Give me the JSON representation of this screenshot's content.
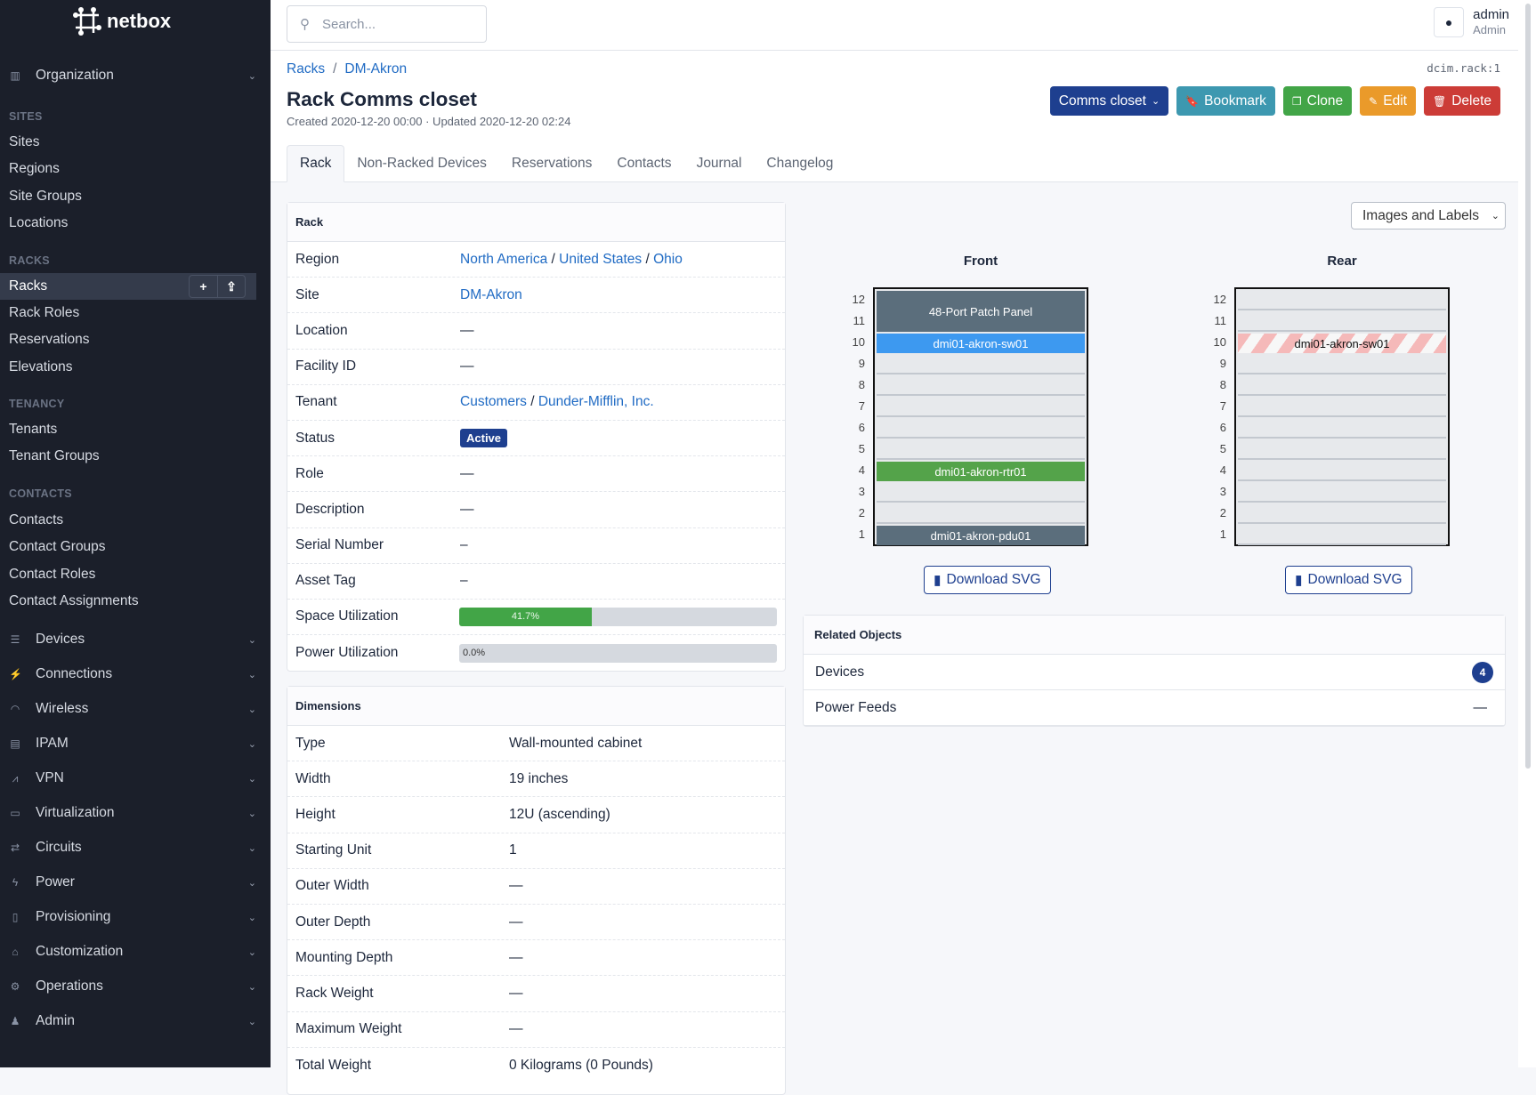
{
  "brand": {
    "name": "netbox"
  },
  "sidebar": {
    "items": [
      {
        "type": "group",
        "label": "Organization",
        "icon": "building-icon",
        "glyph": "▥"
      },
      {
        "type": "section",
        "label": "SITES"
      },
      {
        "type": "item",
        "label": "Sites"
      },
      {
        "type": "item",
        "label": "Regions"
      },
      {
        "type": "item",
        "label": "Site Groups"
      },
      {
        "type": "item",
        "label": "Locations"
      },
      {
        "type": "section",
        "label": "RACKS"
      },
      {
        "type": "item",
        "label": "Racks",
        "active": true
      },
      {
        "type": "item",
        "label": "Rack Roles"
      },
      {
        "type": "item",
        "label": "Reservations"
      },
      {
        "type": "item",
        "label": "Elevations"
      },
      {
        "type": "section",
        "label": "TENANCY"
      },
      {
        "type": "item",
        "label": "Tenants"
      },
      {
        "type": "item",
        "label": "Tenant Groups"
      },
      {
        "type": "section",
        "label": "CONTACTS"
      },
      {
        "type": "item",
        "label": "Contacts"
      },
      {
        "type": "item",
        "label": "Contact Groups"
      },
      {
        "type": "item",
        "label": "Contact Roles"
      },
      {
        "type": "item",
        "label": "Contact Assignments"
      },
      {
        "type": "group",
        "label": "Devices",
        "icon": "server-icon",
        "glyph": "☰"
      },
      {
        "type": "group",
        "label": "Connections",
        "icon": "plug-icon",
        "glyph": "⚡"
      },
      {
        "type": "group",
        "label": "Wireless",
        "icon": "wifi-icon",
        "glyph": "◠"
      },
      {
        "type": "group",
        "label": "IPAM",
        "icon": "ip-icon",
        "glyph": "▤"
      },
      {
        "type": "group",
        "label": "VPN",
        "icon": "vpn-icon",
        "glyph": "⩘"
      },
      {
        "type": "group",
        "label": "Virtualization",
        "icon": "monitor-icon",
        "glyph": "▭"
      },
      {
        "type": "group",
        "label": "Circuits",
        "icon": "circuit-icon",
        "glyph": "⇄"
      },
      {
        "type": "group",
        "label": "Power",
        "icon": "power-icon",
        "glyph": "ϟ"
      },
      {
        "type": "group",
        "label": "Provisioning",
        "icon": "file-icon",
        "glyph": "▯"
      },
      {
        "type": "group",
        "label": "Customization",
        "icon": "palette-icon",
        "glyph": "⌂"
      },
      {
        "type": "group",
        "label": "Operations",
        "icon": "cogs-icon",
        "glyph": "⚙"
      },
      {
        "type": "group",
        "label": "Admin",
        "icon": "users-icon",
        "glyph": "♟"
      }
    ],
    "add_symbol": "+",
    "import_symbol": "⇪"
  },
  "search": {
    "placeholder": "Search..."
  },
  "user": {
    "name": "admin",
    "role": "Admin"
  },
  "breadcrumb": [
    "Racks",
    "DM-Akron"
  ],
  "object_id": "dcim.rack:1",
  "page": {
    "title": "Rack Comms closet",
    "meta": "Created 2020-12-20 00:00 · Updated 2020-12-20 02:24"
  },
  "actions": [
    {
      "label": "Comms closet",
      "icon": "",
      "suffix": "⌄",
      "color": "#1e3f8f"
    },
    {
      "label": "Bookmark",
      "icon": "🔖",
      "color": "#3d98b0"
    },
    {
      "label": "Clone",
      "icon": "❐",
      "color": "#42a547"
    },
    {
      "label": "Edit",
      "icon": "✎",
      "color": "#ea9a2a"
    },
    {
      "label": "Delete",
      "icon": "🗑",
      "color": "#cc3c37"
    }
  ],
  "tabs": [
    "Rack",
    "Non-Racked Devices",
    "Reservations",
    "Contacts",
    "Journal",
    "Changelog"
  ],
  "rack_card": {
    "title": "Rack",
    "rows": [
      {
        "k": "Region",
        "links": [
          "North America",
          "United States",
          "Ohio"
        ]
      },
      {
        "k": "Site",
        "links": [
          "DM-Akron"
        ]
      },
      {
        "k": "Location",
        "v": "—"
      },
      {
        "k": "Facility ID",
        "v": "—"
      },
      {
        "k": "Tenant",
        "links": [
          "Customers",
          "Dunder-Mifflin, Inc."
        ]
      },
      {
        "k": "Status",
        "badge": "Active"
      },
      {
        "k": "Role",
        "v": "—"
      },
      {
        "k": "Description",
        "v": "—"
      },
      {
        "k": "Serial Number",
        "v": "–"
      },
      {
        "k": "Asset Tag",
        "v": "–"
      },
      {
        "k": "Space Utilization",
        "progress": 41.7,
        "label": "41.7%"
      },
      {
        "k": "Power Utilization",
        "progress": 0,
        "label": "0.0%"
      }
    ]
  },
  "dimensions_card": {
    "title": "Dimensions",
    "rows": [
      {
        "k": "Type",
        "v": "Wall-mounted cabinet"
      },
      {
        "k": "Width",
        "v": "19 inches"
      },
      {
        "k": "Height",
        "v": "12U (ascending)"
      },
      {
        "k": "Starting Unit",
        "v": "1"
      },
      {
        "k": "Outer Width",
        "v": "—"
      },
      {
        "k": "Outer Depth",
        "v": "—"
      },
      {
        "k": "Mounting Depth",
        "v": "—"
      },
      {
        "k": "Rack Weight",
        "v": "—"
      },
      {
        "k": "Maximum Weight",
        "v": "—"
      },
      {
        "k": "Total Weight",
        "v": "0 Kilograms (0 Pounds)"
      }
    ]
  },
  "elevation": {
    "view_select": "Images and Labels",
    "units": 12,
    "download_label": "Download SVG",
    "faces": [
      {
        "label": "Front",
        "devices": [
          {
            "name": "48-Port Patch Panel",
            "u": 11,
            "height": 2,
            "color": "#5b6e7c"
          },
          {
            "name": "dmi01-akron-sw01",
            "u": 10,
            "height": 1,
            "color": "#3d99f0"
          },
          {
            "name": "dmi01-akron-rtr01",
            "u": 4,
            "height": 1,
            "color": "#54a34a"
          },
          {
            "name": "dmi01-akron-pdu01",
            "u": 1,
            "height": 1,
            "color": "#5b6e7c"
          }
        ]
      },
      {
        "label": "Rear",
        "devices": [
          {
            "name": "dmi01-akron-sw01",
            "u": 10,
            "height": 1,
            "color": "striped"
          }
        ]
      }
    ]
  },
  "related": {
    "title": "Related Objects",
    "items": [
      {
        "label": "Devices",
        "count": "4"
      },
      {
        "label": "Power Feeds",
        "count": "—"
      }
    ]
  }
}
